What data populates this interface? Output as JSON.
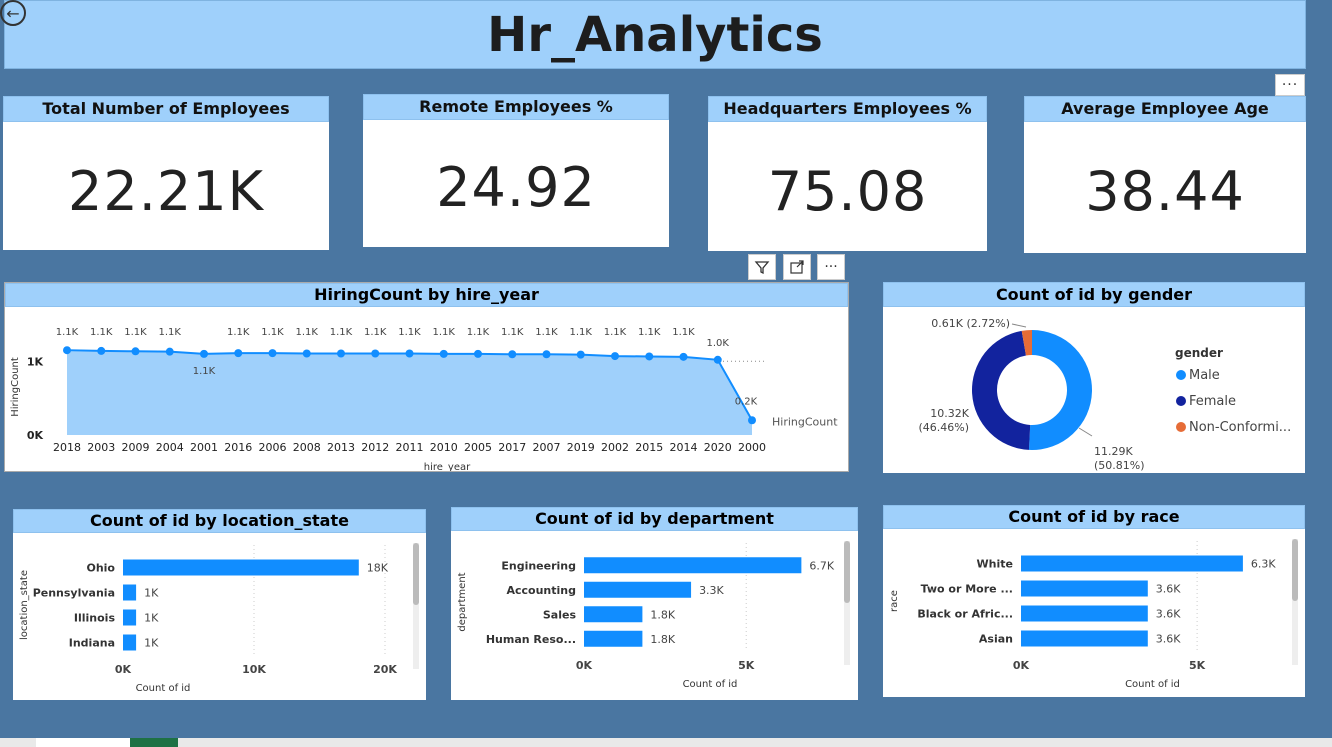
{
  "dashboard": {
    "title": "Hr_Analytics"
  },
  "kpis": [
    {
      "label": "Total Number of Employees",
      "value": "22.21K"
    },
    {
      "label": "Remote Employees %",
      "value": "24.92"
    },
    {
      "label": "Headquarters Employees %",
      "value": "75.08"
    },
    {
      "label": "Average Employee Age",
      "value": "38.44"
    }
  ],
  "icons": {
    "back": "back-arrow-icon",
    "more": "more-options-icon",
    "filter": "filter-icon",
    "focus": "focus-mode-icon"
  },
  "chart_data": [
    {
      "type": "area",
      "title": "HiringCount by hire_year",
      "xlabel": "hire_year",
      "ylabel": "HiringCount",
      "series_label": "HiringCount",
      "categories": [
        "2018",
        "2003",
        "2009",
        "2004",
        "2001",
        "2016",
        "2006",
        "2008",
        "2013",
        "2012",
        "2011",
        "2010",
        "2005",
        "2017",
        "2007",
        "2019",
        "2002",
        "2015",
        "2014",
        "2020",
        "2000"
      ],
      "values": [
        1150,
        1140,
        1135,
        1130,
        1100,
        1110,
        1110,
        1105,
        1105,
        1105,
        1105,
        1100,
        1100,
        1095,
        1095,
        1090,
        1070,
        1065,
        1060,
        1020,
        200
      ],
      "data_labels": [
        "1.1K",
        "1.1K",
        "1.1K",
        "1.1K",
        "1.1K",
        "1.1K",
        "1.1K",
        "1.1K",
        "1.1K",
        "1.1K",
        "1.1K",
        "1.1K",
        "1.1K",
        "1.1K",
        "1.1K",
        "1.1K",
        "1.1K",
        "1.1K",
        "1.1K",
        "1.0K",
        "0.2K"
      ],
      "yticks": [
        "0K",
        "1K"
      ],
      "ylim": [
        0,
        1600
      ],
      "color": "#118dff"
    },
    {
      "type": "pie",
      "title": "Count of id by gender",
      "legend_title": "gender",
      "slices": [
        {
          "name": "Male",
          "value": 11290,
          "label": "11.29K",
          "pct": "(50.81%)",
          "color": "#118dff"
        },
        {
          "name": "Female",
          "value": 10320,
          "label": "10.32K",
          "pct": "(46.46%)",
          "color": "#12239e"
        },
        {
          "name": "Non-Conformi...",
          "value": 610,
          "label": "0.61K (2.72%)",
          "pct": "",
          "color": "#e66c37"
        }
      ]
    },
    {
      "type": "bar",
      "title": "Count of id by location_state",
      "ylabel": "location_state",
      "xlabel": "Count of id",
      "categories": [
        "Ohio",
        "Pennsylvania",
        "Illinois",
        "Indiana"
      ],
      "values": [
        18000,
        1000,
        1000,
        1000
      ],
      "data_labels": [
        "18K",
        "1K",
        "1K",
        "1K"
      ],
      "xticks": [
        "0K",
        "10K",
        "20K"
      ],
      "xlim": [
        0,
        20000
      ],
      "color": "#118dff"
    },
    {
      "type": "bar",
      "title": "Count of id by department",
      "ylabel": "department",
      "xlabel": "Count of id",
      "categories": [
        "Engineering",
        "Accounting",
        "Sales",
        "Human Reso..."
      ],
      "values": [
        6700,
        3300,
        1800,
        1800
      ],
      "data_labels": [
        "6.7K",
        "3.3K",
        "1.8K",
        "1.8K"
      ],
      "xticks": [
        "0K",
        "5K"
      ],
      "xlim": [
        0,
        9000
      ],
      "color": "#118dff"
    },
    {
      "type": "bar",
      "title": "Count of id by race",
      "ylabel": "race",
      "xlabel": "Count of id",
      "categories": [
        "White",
        "Two or More ...",
        "Black or Afric...",
        "Asian"
      ],
      "values": [
        6300,
        3600,
        3600,
        3600
      ],
      "data_labels": [
        "6.3K",
        "3.6K",
        "3.6K",
        "3.6K"
      ],
      "xticks": [
        "0K",
        "5K"
      ],
      "xlim": [
        0,
        9000
      ],
      "color": "#118dff"
    }
  ]
}
